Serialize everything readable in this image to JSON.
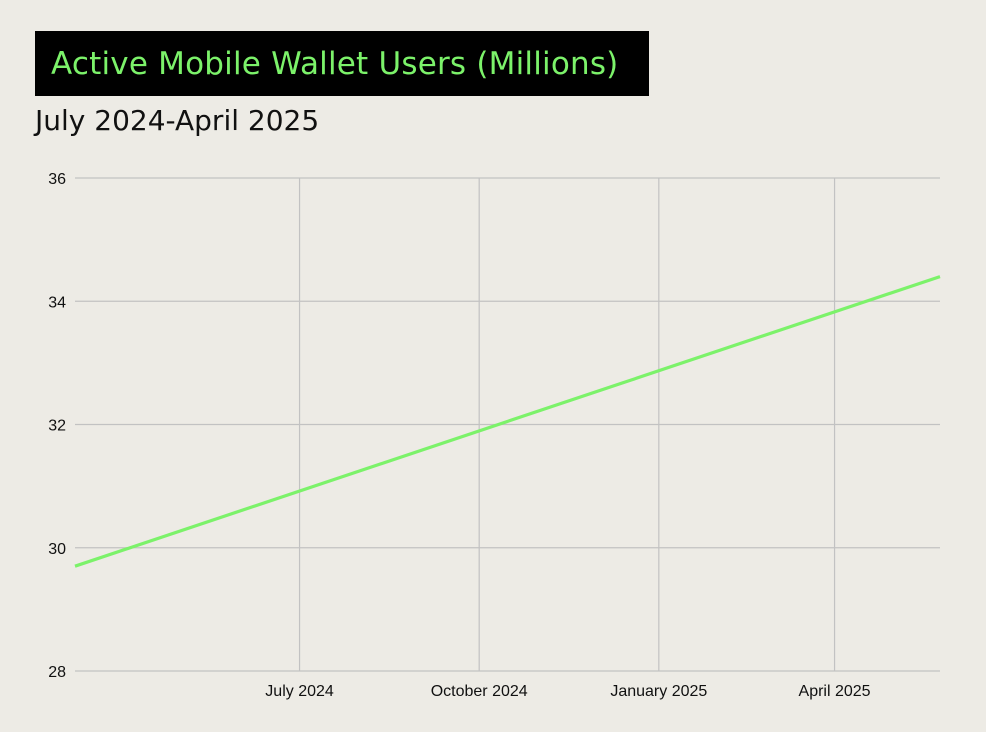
{
  "header": {
    "title": "Active Mobile Wallet Users (Millions)",
    "subtitle": "July 2024-April 2025"
  },
  "colors": {
    "background": "#edebe5",
    "title_background": "#000000",
    "title_text": "#7cf26a",
    "line": "#7cf26a",
    "grid": "#c2c2c2",
    "text": "#111111"
  },
  "chart_data": {
    "type": "line",
    "title": "Active Mobile Wallet Users (Millions)",
    "subtitle": "July 2024-April 2025",
    "xlabel": "",
    "ylabel": "",
    "x_ticks": [
      "July 2024",
      "October 2024",
      "January 2025",
      "April 2025"
    ],
    "y_ticks": [
      28,
      30,
      32,
      34,
      36
    ],
    "ylim": [
      28,
      36
    ],
    "xlim": [
      "2024-03-08",
      "2025-05-25"
    ],
    "grid": true,
    "legend": "none",
    "series": [
      {
        "x": [
          "2024-03-08",
          "2025-05-25"
        ],
        "values": [
          29.7,
          34.4
        ]
      }
    ]
  }
}
